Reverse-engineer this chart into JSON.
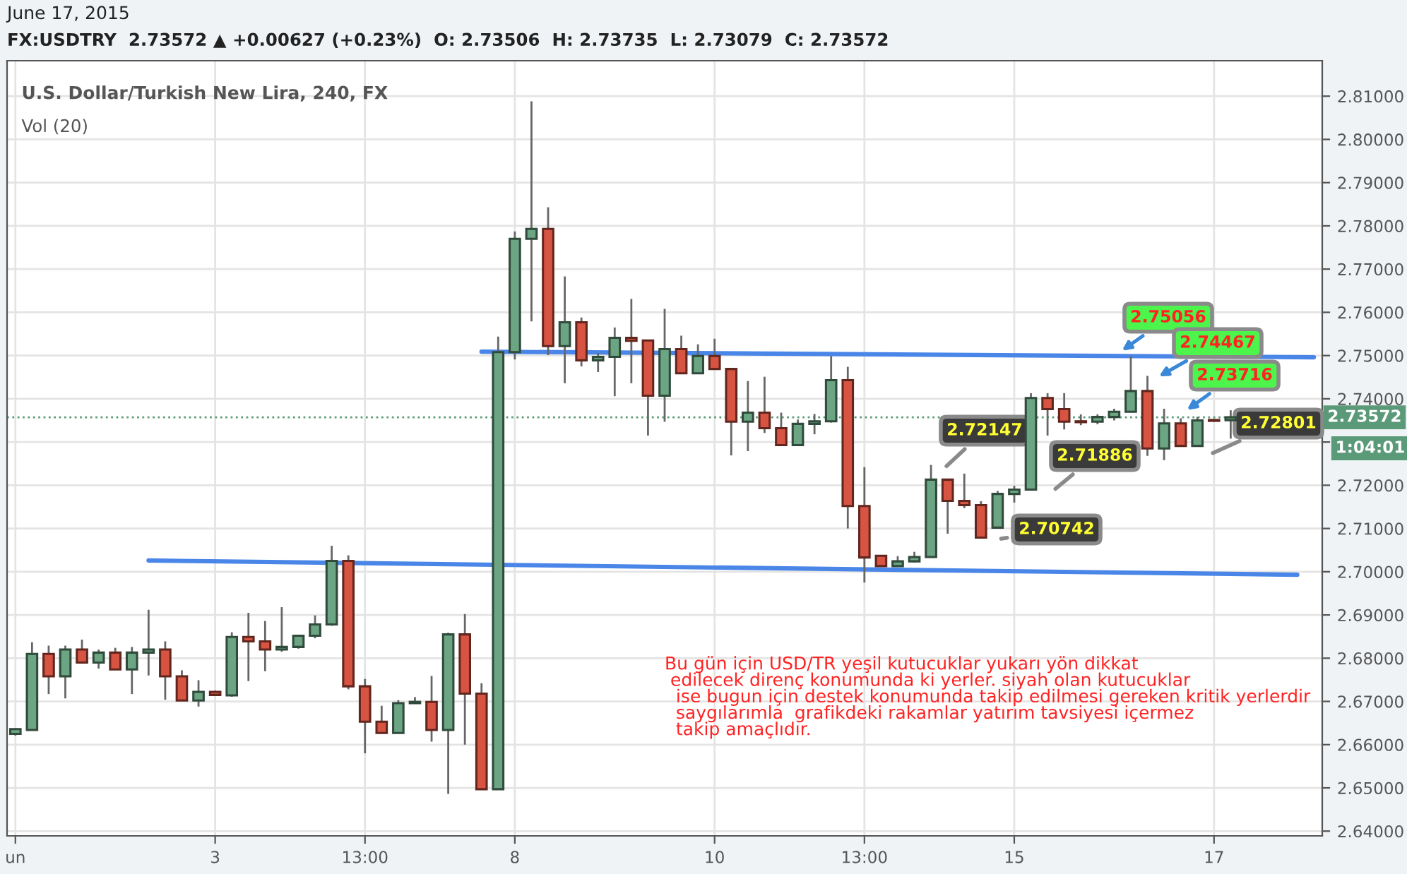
{
  "chart_data": {
    "type": "candlestick",
    "title": "U.S. Dollar/Turkish New Lira, 240, FX",
    "subtitle": "FX:USDTRY  2.73572 ▲ +0.00627 (+0.23%)  O: 2.73506  H: 2.73735  L: 2.73079  C: 2.73572",
    "categories": [
      "un",
      null,
      null,
      null,
      null,
      null,
      null,
      null,
      null,
      null,
      null,
      null,
      "3",
      null,
      null,
      null,
      null,
      null,
      null,
      null,
      null,
      "13:00",
      null,
      null,
      null,
      null,
      null,
      null,
      null,
      null,
      "8",
      null,
      null,
      null,
      null,
      null,
      null,
      null,
      null,
      null,
      null,
      null,
      "10",
      null,
      null,
      null,
      null,
      null,
      null,
      null,
      null,
      "13:00",
      null,
      null,
      null,
      null,
      null,
      null,
      null,
      null,
      "15",
      null,
      null,
      null,
      null,
      null,
      null,
      null,
      null,
      null,
      null,
      null,
      "17",
      null,
      null,
      null,
      null,
      null,
      null
    ],
    "ohlc": [
      [
        2.6625,
        2.6638,
        2.6621,
        2.6636
      ],
      [
        2.6634,
        2.6837,
        2.6634,
        2.681
      ],
      [
        2.681,
        2.6829,
        2.6717,
        2.6758
      ],
      [
        2.6758,
        2.6829,
        2.6707,
        2.682
      ],
      [
        2.682,
        2.6843,
        2.679,
        2.679
      ],
      [
        2.679,
        2.682,
        2.6776,
        2.6813
      ],
      [
        2.6813,
        2.6824,
        2.6774,
        2.6774
      ],
      [
        2.6774,
        2.6826,
        2.6717,
        2.6813
      ],
      [
        2.6813,
        2.6912,
        2.676,
        2.682
      ],
      [
        2.682,
        2.6839,
        2.6704,
        2.6758
      ],
      [
        2.6758,
        2.6772,
        2.6702,
        2.6702
      ],
      [
        2.6702,
        2.6749,
        2.6688,
        2.6722
      ],
      [
        2.6722,
        2.6725,
        2.6715,
        2.6715
      ],
      [
        2.6714,
        2.686,
        2.6711,
        2.6849
      ],
      [
        2.6849,
        2.6905,
        2.6747,
        2.6839
      ],
      [
        2.6839,
        2.6886,
        2.677,
        2.682
      ],
      [
        2.682,
        2.6918,
        2.6815,
        2.6826
      ],
      [
        2.6826,
        2.6852,
        2.6822,
        2.6852
      ],
      [
        2.6852,
        2.6899,
        2.6846,
        2.6878
      ],
      [
        2.6878,
        2.706,
        2.6875,
        2.7025
      ],
      [
        2.7025,
        2.7038,
        2.6728,
        2.6735
      ],
      [
        2.6735,
        2.6752,
        2.658,
        2.6653
      ],
      [
        2.6653,
        2.669,
        2.6627,
        2.6627
      ],
      [
        2.6627,
        2.6703,
        2.6627,
        2.6696
      ],
      [
        2.6696,
        2.671,
        2.6696,
        2.6699
      ],
      [
        2.6699,
        2.6759,
        2.6607,
        2.6634
      ],
      [
        2.6634,
        2.6859,
        2.6486,
        2.6855
      ],
      [
        2.6855,
        2.6902,
        2.66,
        2.6718
      ],
      [
        2.6718,
        2.6742,
        2.6497,
        2.6497
      ],
      [
        2.6497,
        2.7544,
        2.6497,
        2.7508
      ],
      [
        2.7508,
        2.7787,
        2.7491,
        2.777
      ],
      [
        2.777,
        2.8088,
        2.7579,
        2.7793
      ],
      [
        2.7793,
        2.7843,
        2.7501,
        2.7522
      ],
      [
        2.7522,
        2.7683,
        2.7436,
        2.7577
      ],
      [
        2.7577,
        2.7588,
        2.7475,
        2.7489
      ],
      [
        2.7489,
        2.7506,
        2.7462,
        2.7497
      ],
      [
        2.7497,
        2.7565,
        2.7406,
        2.7541
      ],
      [
        2.7541,
        2.7631,
        2.7436,
        2.7534
      ],
      [
        2.7535,
        2.7535,
        2.7315,
        2.7407
      ],
      [
        2.7407,
        2.7608,
        2.7347,
        2.7515
      ],
      [
        2.7515,
        2.7546,
        2.7459,
        2.7459
      ],
      [
        2.7459,
        2.7526,
        2.7459,
        2.7499
      ],
      [
        2.7499,
        2.7539,
        2.7469,
        2.7469
      ],
      [
        2.7469,
        2.7469,
        2.7269,
        2.7347
      ],
      [
        2.7347,
        2.7441,
        2.7279,
        2.7368
      ],
      [
        2.7368,
        2.7451,
        2.7321,
        2.7332
      ],
      [
        2.7332,
        2.7368,
        2.7293,
        2.7293
      ],
      [
        2.7293,
        2.7352,
        2.7293,
        2.7342
      ],
      [
        2.7342,
        2.7365,
        2.7318,
        2.7348
      ],
      [
        2.7348,
        2.7499,
        2.7345,
        2.7443
      ],
      [
        2.7443,
        2.7474,
        2.71,
        2.7152
      ],
      [
        2.7152,
        2.7242,
        2.6975,
        2.7033
      ],
      [
        2.7037,
        2.7037,
        2.7013,
        2.7013
      ],
      [
        2.7013,
        2.7036,
        2.7013,
        2.7024
      ],
      [
        2.7024,
        2.7046,
        2.7021,
        2.7034
      ],
      [
        2.7034,
        2.7247,
        2.7034,
        2.7213
      ],
      [
        2.7213,
        2.7213,
        2.7088,
        2.7164
      ],
      [
        2.7164,
        2.7227,
        2.7147,
        2.7154
      ],
      [
        2.7154,
        2.7163,
        2.7079,
        2.7079
      ],
      [
        2.7102,
        2.7187,
        2.7102,
        2.718
      ],
      [
        2.718,
        2.7199,
        2.716,
        2.719
      ],
      [
        2.719,
        2.7413,
        2.719,
        2.7402
      ],
      [
        2.7402,
        2.7413,
        2.7315,
        2.7376
      ],
      [
        2.7376,
        2.7413,
        2.7329,
        2.7347
      ],
      [
        2.7348,
        2.7364,
        2.7339,
        2.7346
      ],
      [
        2.7347,
        2.7364,
        2.7341,
        2.7358
      ],
      [
        2.7358,
        2.7377,
        2.735,
        2.737
      ],
      [
        2.737,
        2.7499,
        2.737,
        2.7418
      ],
      [
        2.7418,
        2.7453,
        2.7268,
        2.7285
      ],
      [
        2.7285,
        2.7377,
        2.7258,
        2.7343
      ],
      [
        2.7343,
        2.7355,
        2.7291,
        2.7291
      ],
      [
        2.7291,
        2.7358,
        2.7291,
        2.735
      ],
      [
        2.7351,
        2.7353,
        2.7347,
        2.7349
      ],
      [
        2.73506,
        2.73735,
        2.73079,
        2.73572
      ],
      null,
      null,
      null,
      null,
      null
    ],
    "colors": [
      "#6ba583",
      "#6ba583",
      "#d75442",
      "#6ba583",
      "#d75442",
      "#6ba583",
      "#d75442",
      "#6ba583",
      "#6ba583",
      "#d75442",
      "#d75442",
      "#6ba583",
      "#d75442",
      "#6ba583",
      "#d75442",
      "#d75442",
      "#6ba583",
      "#6ba583",
      "#6ba583",
      "#6ba583",
      "#d75442",
      "#d75442",
      "#d75442",
      "#6ba583",
      "#6ba583",
      "#d75442",
      "#6ba583",
      "#d75442",
      "#d75442",
      "#6ba583",
      "#6ba583",
      "#6ba583",
      "#d75442",
      "#6ba583",
      "#d75442",
      "#6ba583",
      "#6ba583",
      "#d75442",
      "#d75442",
      "#6ba583",
      "#d75442",
      "#6ba583",
      "#d75442",
      "#d75442",
      "#6ba583",
      "#d75442",
      "#d75442",
      "#6ba583",
      "#6ba583",
      "#6ba583",
      "#d75442",
      "#d75442",
      "#d75442",
      "#6ba583",
      "#6ba583",
      "#6ba583",
      "#d75442",
      "#d75442",
      "#d75442",
      "#6ba583",
      "#6ba583",
      "#6ba583",
      "#d75442",
      "#d75442",
      "#d75442",
      "#6ba583",
      "#6ba583",
      "#6ba583",
      "#d75442",
      "#6ba583",
      "#d75442",
      "#6ba583",
      "#d75442",
      "#6ba583",
      null,
      null,
      null,
      null,
      null
    ],
    "series": [
      {
        "type": "line",
        "color": "#4a86e8",
        "values": [
          null,
          null,
          null,
          null,
          null,
          null,
          null,
          null,
          null,
          null,
          null,
          null,
          null,
          null,
          null,
          null,
          null,
          null,
          null,
          null,
          null,
          null,
          null,
          null,
          null,
          null,
          null,
          null,
          2.7509,
          null,
          null,
          null,
          null,
          null,
          null,
          null,
          null,
          null,
          null,
          null,
          null,
          null,
          null,
          null,
          null,
          null,
          null,
          null,
          null,
          null,
          null,
          null,
          null,
          null,
          null,
          null,
          null,
          null,
          null,
          null,
          null,
          null,
          null,
          null,
          null,
          null,
          null,
          null,
          null,
          null,
          null,
          null,
          null,
          null,
          null,
          null,
          null,
          null,
          2.7496
        ]
      },
      {
        "type": "line",
        "color": "#4a86e8",
        "values": [
          null,
          null,
          null,
          null,
          null,
          null,
          null,
          null,
          2.7026,
          null,
          null,
          null,
          null,
          null,
          null,
          null,
          null,
          null,
          null,
          null,
          null,
          null,
          null,
          null,
          null,
          null,
          null,
          null,
          null,
          null,
          null,
          null,
          null,
          null,
          null,
          null,
          null,
          null,
          null,
          null,
          null,
          null,
          null,
          null,
          null,
          null,
          null,
          null,
          null,
          null,
          null,
          null,
          null,
          null,
          null,
          null,
          null,
          null,
          null,
          null,
          null,
          null,
          null,
          null,
          null,
          null,
          null,
          null,
          null,
          null,
          null,
          null,
          null,
          null,
          null,
          null,
          null,
          2.6993,
          null
        ]
      }
    ],
    "ref_lines": [
      {
        "axis": "y",
        "value": 2.73572,
        "label": "2.73572",
        "color": "#5a9a78",
        "line_style": "dotted"
      }
    ],
    "annotations": [
      "June 17, 2015",
      "Vol (20)",
      "2.75056",
      "2.74467",
      "2.73716",
      "2.72147",
      "2.71886",
      "2.70742",
      "2.72801",
      "1:04:01",
      "Bu gün için USD/TR yeşil kutucuklar yukarı yön dikkat\n edilecek direnç konumunda ki yerler. siyah olan kutucuklar\n  ise bugun için destek konumunda takip edilmesi gereken kritik yerlerdir\n  saygılarımla  grafikdeki rakamlar yatırım tavsiyesi içermez\n  takip amaçlıdır."
    ],
    "ylim": [
      2.6389,
      2.8182
    ],
    "yticks": [
      {
        "value": 2.64,
        "label": "2.64000"
      },
      {
        "value": 2.65,
        "label": "2.65000"
      },
      {
        "value": 2.66,
        "label": "2.66000"
      },
      {
        "value": 2.67,
        "label": "2.67000"
      },
      {
        "value": 2.68,
        "label": "2.68000"
      },
      {
        "value": 2.69,
        "label": "2.69000"
      },
      {
        "value": 2.7,
        "label": "2.70000"
      },
      {
        "value": 2.71,
        "label": "2.71000"
      },
      {
        "value": 2.72,
        "label": "2.72000"
      },
      {
        "value": 2.73,
        "label": null
      },
      {
        "value": 2.74,
        "label": "2.74000"
      },
      {
        "value": 2.75,
        "label": "2.75000"
      },
      {
        "value": 2.76,
        "label": "2.76000"
      },
      {
        "value": 2.77,
        "label": "2.77000"
      },
      {
        "value": 2.78,
        "label": "2.78000"
      },
      {
        "value": 2.79,
        "label": "2.79000"
      },
      {
        "value": 2.8,
        "label": "2.80000"
      },
      {
        "value": 2.81,
        "label": "2.81000"
      }
    ],
    "grid": true
  }
}
